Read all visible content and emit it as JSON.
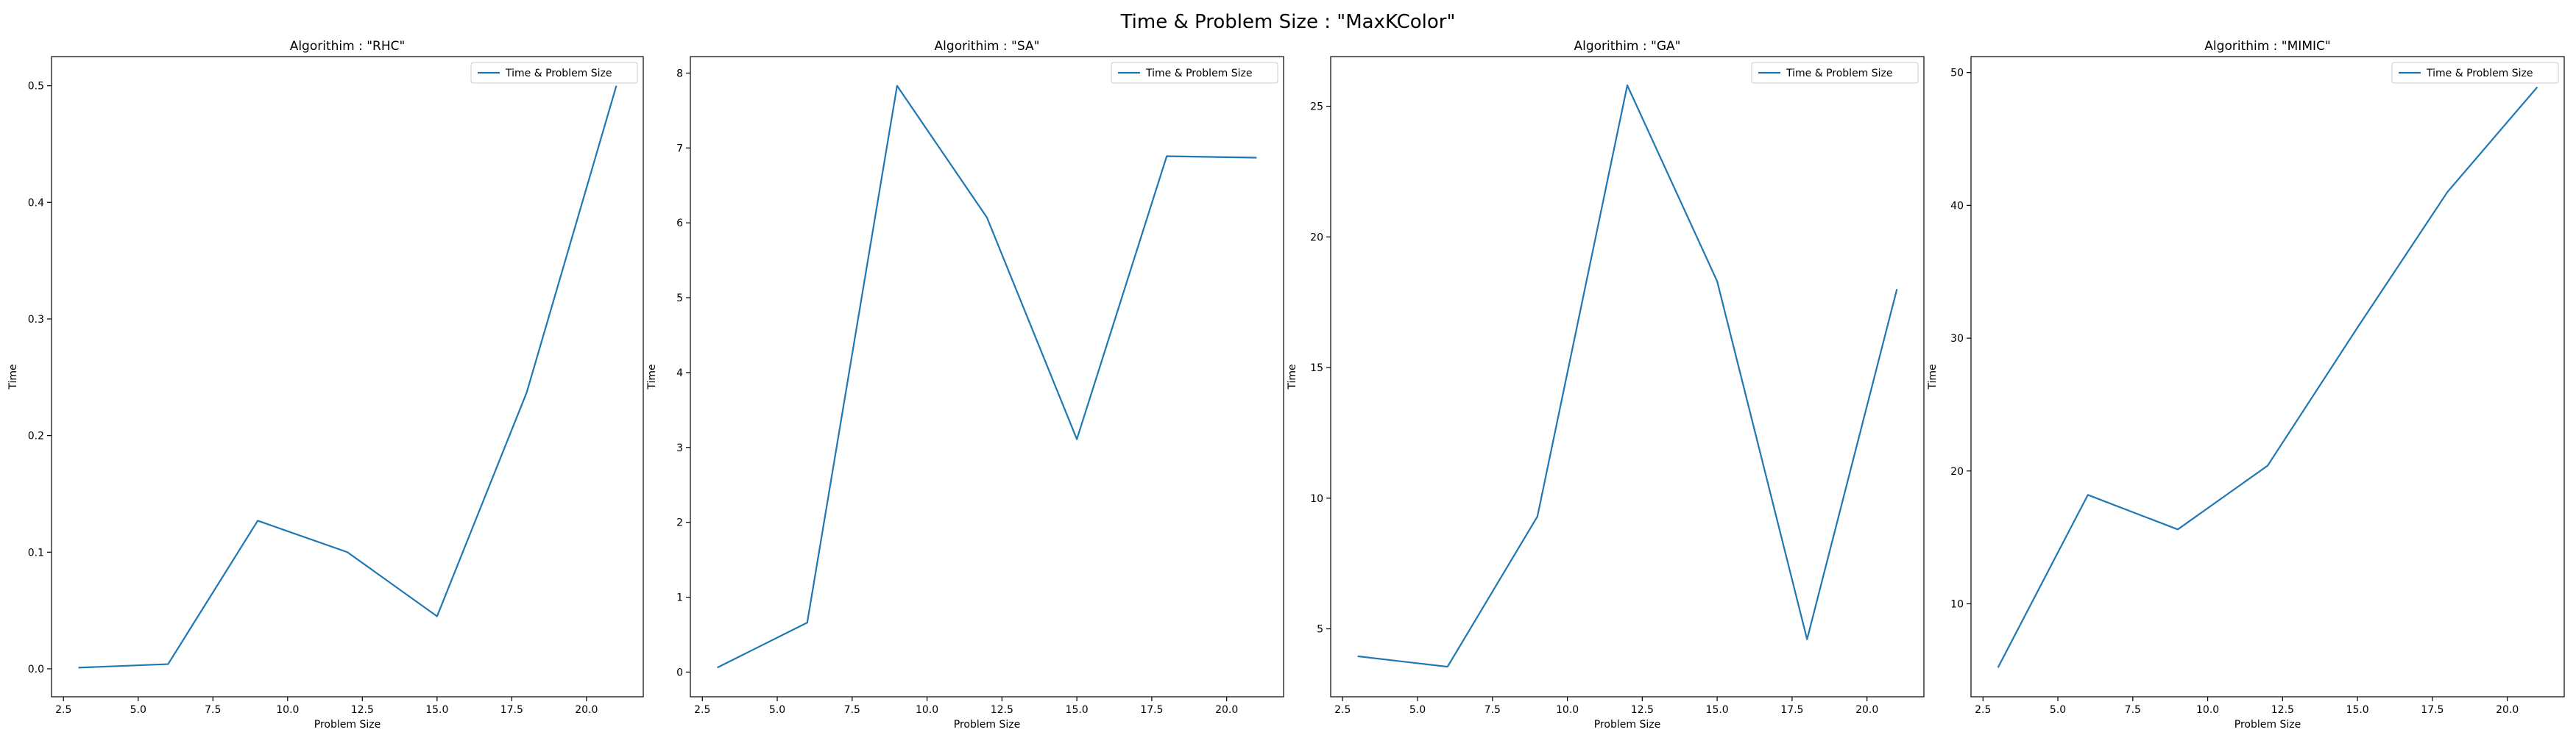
{
  "figure": {
    "suptitle": "Time & Problem Size : \"MaxKColor\""
  },
  "colors": {
    "line": "#1f77b4",
    "axes": "#000000",
    "background": "#ffffff"
  },
  "chart_data": [
    {
      "type": "line",
      "title": "Algorithim : \"RHC\"",
      "xlabel": "Problem Size",
      "ylabel": "Time",
      "x": [
        3,
        6,
        9,
        12,
        15,
        18,
        21
      ],
      "series": [
        {
          "name": "Time & Problem Size",
          "values": [
            0.001,
            0.004,
            0.127,
            0.1,
            0.045,
            0.237,
            0.5
          ]
        }
      ],
      "xlim": [
        2.1,
        21.9
      ],
      "ylim": [
        -0.024,
        0.525
      ],
      "xticks": [
        2.5,
        5.0,
        7.5,
        10.0,
        12.5,
        15.0,
        17.5,
        20.0
      ],
      "xticklabels": [
        "2.5",
        "5.0",
        "7.5",
        "10.0",
        "12.5",
        "15.0",
        "17.5",
        "20.0"
      ],
      "yticks": [
        0,
        0.1,
        0.2,
        0.3,
        0.4,
        0.5
      ],
      "yticklabels": [
        "0.0",
        "0.1",
        "0.2",
        "0.3",
        "0.4",
        "0.5"
      ],
      "legend": "top-right",
      "grid": false
    },
    {
      "type": "line",
      "title": "Algorithim : \"SA\"",
      "xlabel": "Problem Size",
      "ylabel": "Time",
      "x": [
        3,
        6,
        9,
        12,
        15,
        18,
        21
      ],
      "series": [
        {
          "name": "Time & Problem Size",
          "values": [
            0.06,
            0.66,
            7.83,
            6.07,
            3.11,
            6.89,
            6.87
          ]
        }
      ],
      "xlim": [
        2.1,
        21.9
      ],
      "ylim": [
        -0.33,
        8.22
      ],
      "xticks": [
        2.5,
        5.0,
        7.5,
        10.0,
        12.5,
        15.0,
        17.5,
        20.0
      ],
      "xticklabels": [
        "2.5",
        "5.0",
        "7.5",
        "10.0",
        "12.5",
        "15.0",
        "17.5",
        "20.0"
      ],
      "yticks": [
        0,
        1,
        2,
        3,
        4,
        5,
        6,
        7,
        8
      ],
      "yticklabels": [
        "0",
        "1",
        "2",
        "3",
        "4",
        "5",
        "6",
        "7",
        "8"
      ],
      "legend": "top-right",
      "grid": false
    },
    {
      "type": "line",
      "title": "Algorithim : \"GA\"",
      "xlabel": "Problem Size",
      "ylabel": "Time",
      "x": [
        3,
        6,
        9,
        12,
        15,
        18,
        21
      ],
      "series": [
        {
          "name": "Time & Problem Size",
          "values": [
            3.95,
            3.55,
            9.3,
            25.8,
            18.3,
            4.6,
            18.0
          ]
        }
      ],
      "xlim": [
        2.1,
        21.9
      ],
      "ylim": [
        2.4,
        26.9
      ],
      "xticks": [
        2.5,
        5.0,
        7.5,
        10.0,
        12.5,
        15.0,
        17.5,
        20.0
      ],
      "xticklabels": [
        "2.5",
        "5.0",
        "7.5",
        "10.0",
        "12.5",
        "15.0",
        "17.5",
        "20.0"
      ],
      "yticks": [
        5,
        10,
        15,
        20,
        25
      ],
      "yticklabels": [
        "5",
        "10",
        "15",
        "20",
        "25"
      ],
      "legend": "top-right",
      "grid": false
    },
    {
      "type": "line",
      "title": "Algorithim : \"MIMIC\"",
      "xlabel": "Problem Size",
      "ylabel": "Time",
      "x": [
        3,
        6,
        9,
        12,
        15,
        18,
        21
      ],
      "series": [
        {
          "name": "Time & Problem Size",
          "values": [
            5.2,
            18.2,
            15.6,
            20.4,
            30.8,
            41.0,
            48.9
          ]
        }
      ],
      "xlim": [
        2.1,
        21.9
      ],
      "ylim": [
        3.0,
        51.2
      ],
      "xticks": [
        2.5,
        5.0,
        7.5,
        10.0,
        12.5,
        15.0,
        17.5,
        20.0
      ],
      "xticklabels": [
        "2.5",
        "5.0",
        "7.5",
        "10.0",
        "12.5",
        "15.0",
        "17.5",
        "20.0"
      ],
      "yticks": [
        10,
        20,
        30,
        40,
        50
      ],
      "yticklabels": [
        "10",
        "20",
        "30",
        "40",
        "50"
      ],
      "legend": "top-right",
      "grid": false
    }
  ]
}
